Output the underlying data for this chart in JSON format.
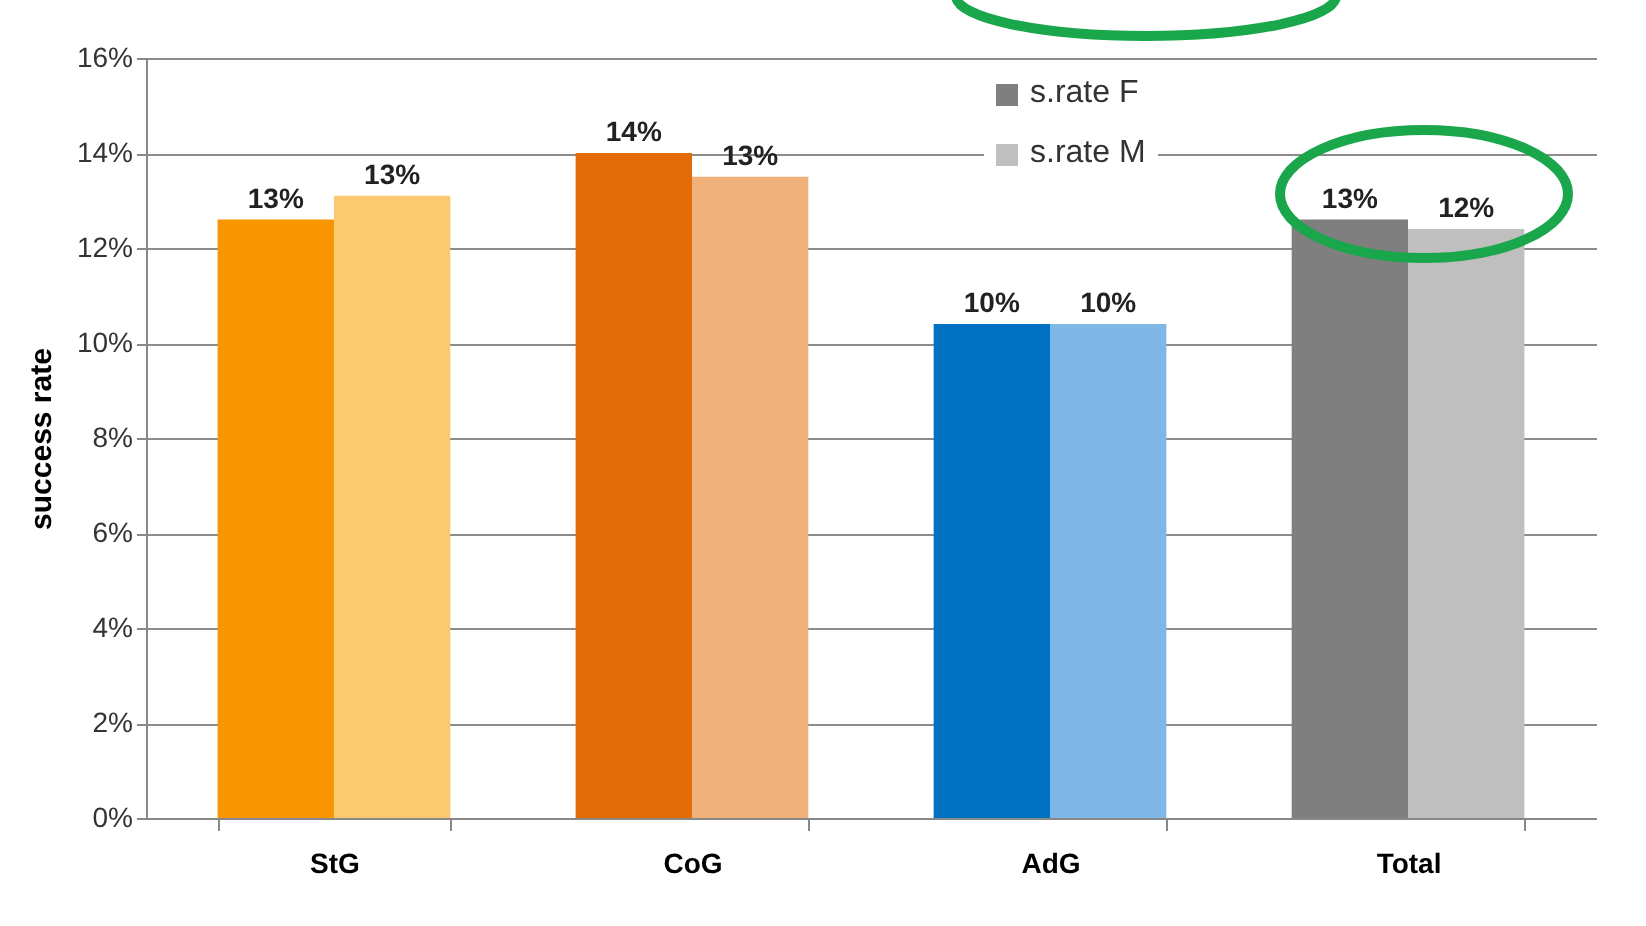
{
  "chart_data": {
    "type": "bar",
    "ylabel": "success rate",
    "categories": [
      "StG",
      "CoG",
      "AdG",
      "Total"
    ],
    "series": [
      {
        "name": "s.rate F",
        "color": "#7f7f7f",
        "colors": [
          "#f79600",
          "#e36c09",
          "#0070c0",
          "#7f7f7f"
        ],
        "values": [
          12.6,
          14.0,
          10.4,
          12.6
        ],
        "value_labels": [
          "13%",
          "14%",
          "10%",
          "13%"
        ]
      },
      {
        "name": "s.rate M",
        "color": "#bfbfbf",
        "colors": [
          "#fbc970",
          "#f0b07a",
          "#7fb8e6",
          "#bfbfbf"
        ],
        "values": [
          13.1,
          13.5,
          10.4,
          12.4
        ],
        "value_labels": [
          "13%",
          "13%",
          "10%",
          "12%"
        ]
      }
    ],
    "ylim": [
      0,
      16
    ],
    "yticks": [
      {
        "value": 0,
        "label": "0%"
      },
      {
        "value": 2,
        "label": "2%"
      },
      {
        "value": 4,
        "label": "4%"
      },
      {
        "value": 6,
        "label": "6%"
      },
      {
        "value": 8,
        "label": "8%"
      },
      {
        "value": 10,
        "label": "10%"
      },
      {
        "value": 12,
        "label": "12%"
      },
      {
        "value": 14,
        "label": "14%"
      },
      {
        "value": 16,
        "label": "16%"
      }
    ],
    "grid": "y",
    "legend": "top right"
  }
}
